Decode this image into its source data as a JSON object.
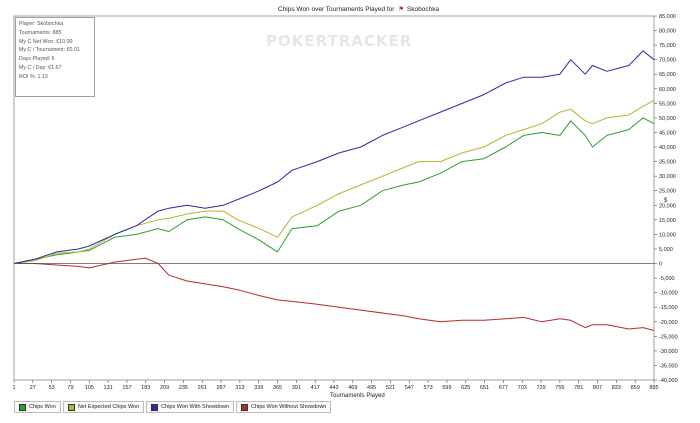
{
  "chart_data": {
    "type": "line",
    "title": "Chips Won over Tournaments Played for",
    "player": "Skobochka",
    "xlabel": "Tournaments Played",
    "ylabel": "",
    "x_ticks": [
      1,
      27,
      53,
      79,
      105,
      131,
      157,
      183,
      209,
      235,
      261,
      287,
      313,
      339,
      365,
      391,
      417,
      443,
      469,
      495,
      521,
      547,
      573,
      599,
      625,
      651,
      677,
      703,
      729,
      755,
      781,
      807,
      833,
      859,
      885
    ],
    "xlim": [
      1,
      885
    ],
    "ylim": [
      -40000,
      85000
    ],
    "y_ticks": [
      -40000,
      -35000,
      -30000,
      -25000,
      -20000,
      -15000,
      -10000,
      -5000,
      0,
      5000,
      10000,
      15000,
      20000,
      25000,
      30000,
      35000,
      40000,
      45000,
      50000,
      55000,
      60000,
      65000,
      70000,
      75000,
      80000,
      85000
    ],
    "y_tick_labels": [
      "-40,000",
      "-35,000",
      "-30,000",
      "-25,000",
      "-20,000",
      "-15,000",
      "-10,000",
      "-5,000",
      "0",
      "5,000",
      "10,000",
      "15,000",
      "20,000",
      "25,000",
      "30,000",
      "35,000",
      "40,000",
      "45,000",
      "50,000",
      "55,000",
      "60,000",
      "65,000",
      "70,000",
      "75,000",
      "80,000",
      "85,000"
    ],
    "y_axis_side": "right",
    "grid": false,
    "legend_position": "bottom",
    "series": [
      {
        "name": "Chips Won",
        "color": "#2e9e2e",
        "x": [
          1,
          30,
          60,
          90,
          105,
          140,
          170,
          200,
          215,
          240,
          265,
          290,
          310,
          340,
          365,
          385,
          420,
          450,
          480,
          510,
          540,
          560,
          590,
          620,
          650,
          680,
          705,
          730,
          755,
          770,
          790,
          800,
          820,
          850,
          870,
          885
        ],
        "y": [
          0,
          1500,
          3000,
          4000,
          4500,
          9000,
          10000,
          12000,
          11000,
          15000,
          16000,
          15000,
          12000,
          8000,
          4000,
          12000,
          13000,
          18000,
          20000,
          25000,
          27000,
          28000,
          31000,
          35000,
          36000,
          40000,
          44000,
          45000,
          44000,
          49000,
          44000,
          40000,
          44000,
          46000,
          50000,
          48000
        ]
      },
      {
        "name": "Net Expected Chips Won",
        "color": "#b5b52a",
        "x": [
          1,
          30,
          60,
          90,
          105,
          140,
          170,
          200,
          215,
          240,
          265,
          290,
          310,
          340,
          365,
          385,
          420,
          450,
          480,
          510,
          540,
          560,
          590,
          620,
          650,
          680,
          705,
          730,
          755,
          770,
          790,
          800,
          820,
          850,
          870,
          885
        ],
        "y": [
          0,
          1000,
          3500,
          4000,
          5000,
          10000,
          13000,
          15000,
          15500,
          17000,
          18000,
          18000,
          15000,
          12000,
          9000,
          16000,
          20000,
          24000,
          27000,
          30000,
          33000,
          35000,
          35000,
          38000,
          40000,
          44000,
          46000,
          48000,
          52000,
          53000,
          49000,
          48000,
          50000,
          51000,
          54000,
          56000
        ]
      },
      {
        "name": "Chips Won With Showdown",
        "color": "#2a2aa8",
        "x": [
          1,
          30,
          60,
          90,
          105,
          140,
          170,
          200,
          215,
          240,
          265,
          290,
          310,
          340,
          365,
          385,
          420,
          450,
          480,
          510,
          540,
          560,
          590,
          620,
          650,
          680,
          705,
          730,
          755,
          770,
          790,
          800,
          820,
          850,
          870,
          885
        ],
        "y": [
          0,
          1500,
          4000,
          5000,
          6000,
          10000,
          13000,
          18000,
          19000,
          20000,
          19000,
          20000,
          22000,
          25000,
          28000,
          32000,
          35000,
          38000,
          40000,
          44000,
          47000,
          49000,
          52000,
          55000,
          58000,
          62000,
          64000,
          64000,
          65000,
          70000,
          65000,
          68000,
          66000,
          68000,
          73000,
          70000
        ]
      },
      {
        "name": "Chips Won Without Showdown",
        "color": "#b52a2a",
        "x": [
          1,
          30,
          60,
          90,
          105,
          140,
          170,
          183,
          200,
          215,
          240,
          265,
          290,
          310,
          340,
          365,
          385,
          420,
          450,
          480,
          510,
          540,
          560,
          590,
          620,
          650,
          680,
          705,
          730,
          755,
          770,
          790,
          800,
          820,
          850,
          870,
          885
        ],
        "y": [
          0,
          0,
          -500,
          -1000,
          -1500,
          500,
          1500,
          1800,
          0,
          -4000,
          -6000,
          -7000,
          -8000,
          -9000,
          -11000,
          -12500,
          -13000,
          -14000,
          -15000,
          -16000,
          -17000,
          -18000,
          -19000,
          -20000,
          -19500,
          -19500,
          -19000,
          -18500,
          -20000,
          -19000,
          -19500,
          -22000,
          -21000,
          -21000,
          -22500,
          -22000,
          -23000
        ]
      }
    ],
    "stats_box": {
      "lines": [
        "Player: Skobochka",
        "Tournaments: 885",
        "My C Net Won: €10.00",
        "My C / Tournament: €0.01",
        "Days Played: 6",
        "My C / Day: €1.67",
        "ROI %: 1.13"
      ]
    },
    "watermark": "POKERTRACKER"
  }
}
